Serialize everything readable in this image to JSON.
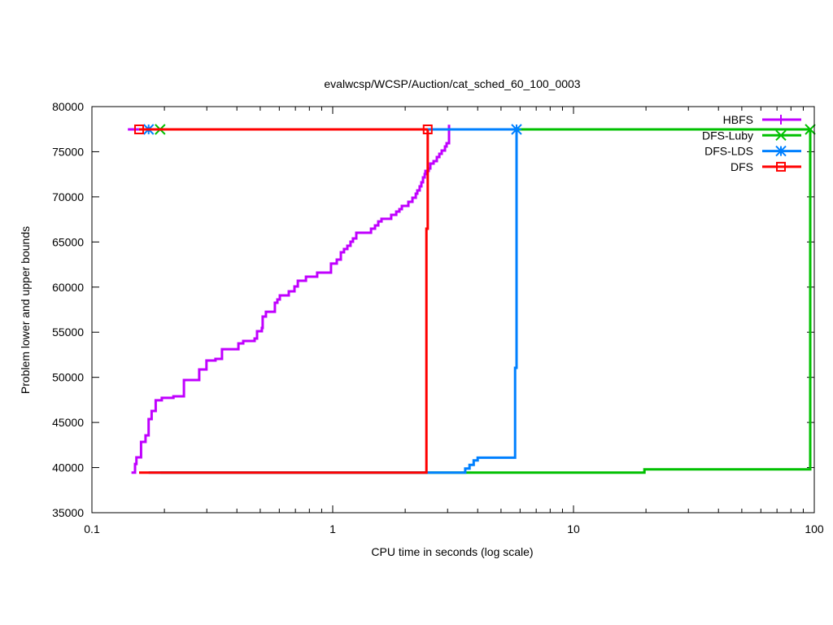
{
  "chart_data": {
    "type": "line",
    "title": "evalwcsp/WCSP/Auction/cat_sched_60_100_0003",
    "xlabel": "CPU time in seconds (log scale)",
    "ylabel": "Problem lower and upper bounds",
    "xscale": "log",
    "xlim": [
      0.1,
      100
    ],
    "ylim": [
      35000,
      80000
    ],
    "xticks": [
      0.1,
      1,
      10,
      100
    ],
    "xtick_labels": [
      "0.1",
      "1",
      "10",
      "100"
    ],
    "yticks": [
      35000,
      40000,
      45000,
      50000,
      55000,
      60000,
      65000,
      70000,
      75000,
      80000
    ],
    "ytick_labels": [
      "35000",
      "40000",
      "45000",
      "50000",
      "55000",
      "60000",
      "65000",
      "70000",
      "75000",
      "80000"
    ],
    "grid": false,
    "legend_position": "top-right",
    "series": [
      {
        "name": "HBFS",
        "color": "#c000ff",
        "marker": "plus",
        "upper": [
          [
            0.141,
            77475
          ],
          [
            3.042,
            77475
          ]
        ],
        "lower": [
          [
            0.146,
            39450
          ],
          [
            0.151,
            40400
          ],
          [
            0.153,
            41130
          ],
          [
            0.16,
            42850
          ],
          [
            0.167,
            43570
          ],
          [
            0.172,
            45370
          ],
          [
            0.177,
            46270
          ],
          [
            0.184,
            47450
          ],
          [
            0.195,
            47720
          ],
          [
            0.218,
            47900
          ],
          [
            0.241,
            49700
          ],
          [
            0.279,
            50870
          ],
          [
            0.299,
            51860
          ],
          [
            0.326,
            52040
          ],
          [
            0.347,
            53120
          ],
          [
            0.406,
            53760
          ],
          [
            0.425,
            54030
          ],
          [
            0.474,
            54300
          ],
          [
            0.485,
            55110
          ],
          [
            0.508,
            55470
          ],
          [
            0.512,
            56730
          ],
          [
            0.528,
            57270
          ],
          [
            0.575,
            58270
          ],
          [
            0.589,
            58630
          ],
          [
            0.603,
            59080
          ],
          [
            0.657,
            59530
          ],
          [
            0.694,
            60070
          ],
          [
            0.716,
            60700
          ],
          [
            0.774,
            61150
          ],
          [
            0.862,
            61600
          ],
          [
            0.984,
            62600
          ],
          [
            1.04,
            63050
          ],
          [
            1.081,
            63860
          ],
          [
            1.114,
            64220
          ],
          [
            1.15,
            64580
          ],
          [
            1.186,
            65030
          ],
          [
            1.214,
            65390
          ],
          [
            1.253,
            66020
          ],
          [
            1.442,
            66470
          ],
          [
            1.499,
            66830
          ],
          [
            1.546,
            67280
          ],
          [
            1.595,
            67560
          ],
          [
            1.75,
            68010
          ],
          [
            1.836,
            68370
          ],
          [
            1.892,
            68640
          ],
          [
            1.937,
            69000
          ],
          [
            2.061,
            69450
          ],
          [
            2.143,
            69900
          ],
          [
            2.212,
            70350
          ],
          [
            2.246,
            70710
          ],
          [
            2.297,
            71160
          ],
          [
            2.335,
            71610
          ],
          [
            2.372,
            72150
          ],
          [
            2.41,
            72520
          ],
          [
            2.427,
            72880
          ],
          [
            2.504,
            73150
          ],
          [
            2.543,
            73690
          ],
          [
            2.624,
            73960
          ],
          [
            2.706,
            74410
          ],
          [
            2.773,
            74770
          ],
          [
            2.837,
            75130
          ],
          [
            2.926,
            75580
          ],
          [
            2.972,
            75940
          ],
          [
            3.042,
            78000
          ]
        ],
        "markers": []
      },
      {
        "name": "DFS-Luby",
        "color": "#00c000",
        "marker": "x",
        "upper": [
          [
            0.192,
            77475
          ],
          [
            96.2,
            77475
          ]
        ],
        "lower": [
          [
            0.192,
            39450
          ],
          [
            19.7,
            39800
          ],
          [
            96.2,
            77475
          ]
        ],
        "markers": [
          [
            0.192,
            77475
          ],
          [
            96.2,
            77475
          ]
        ]
      },
      {
        "name": "DFS-LDS",
        "color": "#0080ff",
        "marker": "asterisk",
        "upper": [
          [
            0.172,
            77475
          ],
          [
            5.8,
            77475
          ]
        ],
        "lower": [
          [
            0.172,
            39450
          ],
          [
            3.55,
            39900
          ],
          [
            3.7,
            40300
          ],
          [
            3.85,
            40800
          ],
          [
            4.0,
            41100
          ],
          [
            5.72,
            51050
          ],
          [
            5.8,
            77475
          ]
        ],
        "markers": [
          [
            0.172,
            77475
          ],
          [
            5.8,
            77475
          ]
        ]
      },
      {
        "name": "DFS",
        "color": "#ff0000",
        "marker": "square",
        "upper": [
          [
            0.157,
            77475
          ],
          [
            2.48,
            77475
          ]
        ],
        "lower": [
          [
            0.157,
            39450
          ],
          [
            2.45,
            66470
          ],
          [
            2.48,
            77475
          ]
        ],
        "markers": [
          [
            0.157,
            77475
          ],
          [
            2.48,
            77475
          ]
        ]
      }
    ]
  }
}
